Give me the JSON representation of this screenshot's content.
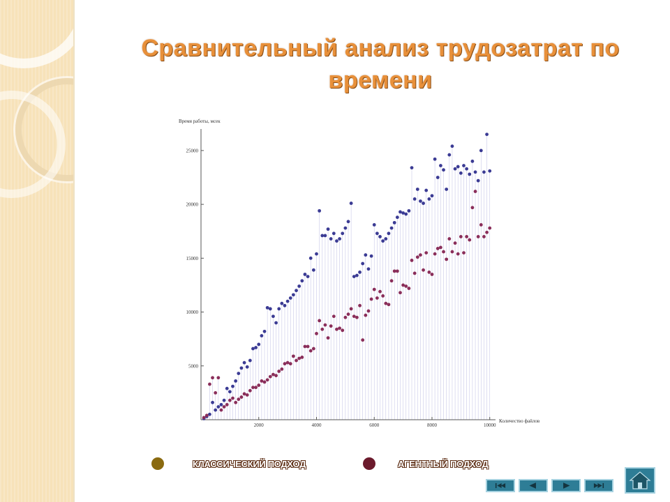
{
  "slide": {
    "title": "Сравнительный анализ трудозатрат по времени"
  },
  "legend": [
    {
      "label": "КЛАССИЧЕСКИЙ ПОДХОД",
      "color": "#8a6a10"
    },
    {
      "label": "АГЕНТНЫЙ ПОДХОД",
      "color": "#6b1a2c"
    }
  ],
  "navigation": {
    "buttons": [
      "first-icon",
      "prev-icon",
      "next-icon",
      "last-icon"
    ],
    "home": "home-icon"
  },
  "colors": {
    "series_classic": "#3b3b94",
    "series_agent": "#8a2e5a",
    "stem": "#c9c9e8",
    "title": "#e8903a",
    "nav": "#2e7d96"
  },
  "chart_data": {
    "type": "scatter",
    "ylabel": "Время работы, мсек",
    "xlabel": "Количество файлов",
    "xlim": [
      0,
      10200
    ],
    "ylim": [
      0,
      27000
    ],
    "xticks": [
      2000,
      4000,
      6000,
      8000,
      10000
    ],
    "yticks": [
      5000,
      10000,
      15000,
      20000,
      25000
    ],
    "x": [
      100,
      200,
      300,
      400,
      500,
      600,
      700,
      800,
      900,
      1000,
      1100,
      1200,
      1300,
      1400,
      1500,
      1600,
      1700,
      1800,
      1900,
      2000,
      2100,
      2200,
      2300,
      2400,
      2500,
      2600,
      2700,
      2800,
      2900,
      3000,
      3100,
      3200,
      3300,
      3400,
      3500,
      3600,
      3700,
      3800,
      3900,
      4000,
      4100,
      4200,
      4300,
      4400,
      4500,
      4600,
      4700,
      4800,
      4900,
      5000,
      5100,
      5200,
      5300,
      5400,
      5500,
      5600,
      5700,
      5800,
      5900,
      6000,
      6100,
      6200,
      6300,
      6400,
      6500,
      6600,
      6700,
      6800,
      6900,
      7000,
      7100,
      7200,
      7300,
      7400,
      7500,
      7600,
      7700,
      7800,
      7900,
      8000,
      8100,
      8200,
      8300,
      8400,
      8500,
      8600,
      8700,
      8800,
      8900,
      9000,
      9100,
      9200,
      9300,
      9400,
      9500,
      9600,
      9700,
      9800,
      9900,
      10000
    ],
    "series": [
      {
        "values": [
          100,
          300,
          500,
          1600,
          900,
          1200,
          1400,
          1800,
          2900,
          2600,
          3100,
          3600,
          4300,
          4800,
          5300,
          4900,
          5500,
          6600,
          6700,
          7000,
          7800,
          8200,
          10400,
          10300,
          9600,
          9000,
          10300,
          10800,
          10600,
          11000,
          11300,
          11600,
          12000,
          12400,
          12900,
          13500,
          13300,
          15000,
          13900,
          15400,
          19400,
          17100,
          17100,
          17700,
          16800,
          17300,
          16600,
          16800,
          17300,
          17800,
          18400,
          20100,
          13300,
          13400,
          13700,
          14500,
          15300,
          14000,
          15200,
          18100,
          17300,
          17000,
          16600,
          16800,
          17300,
          17800,
          18300,
          18800,
          19300,
          19200,
          19100,
          19400,
          23400,
          20500,
          21400,
          20300,
          20100,
          21300,
          20500,
          20800,
          24200,
          22500,
          23600,
          23200,
          21400,
          24600,
          25400,
          23300,
          23500,
          22900,
          23600,
          23300,
          22800,
          24000,
          23000,
          22200,
          25000,
          23000,
          26500,
          23100
        ],
        "color": "#3b3b94"
      },
      {
        "values": [
          200,
          400,
          3300,
          3900,
          2500,
          3900,
          900,
          1200,
          1400,
          1800,
          2000,
          1600,
          1900,
          2100,
          2400,
          2300,
          2700,
          3000,
          3000,
          3200,
          3600,
          3500,
          3700,
          4000,
          4200,
          4100,
          4500,
          4700,
          5200,
          5300,
          5200,
          5900,
          5500,
          5700,
          5800,
          6800,
          6800,
          6400,
          6600,
          8000,
          9200,
          8400,
          8800,
          7600,
          8700,
          9600,
          8400,
          8500,
          8300,
          9500,
          9800,
          10300,
          9600,
          9500,
          10600,
          7400,
          9700,
          10100,
          11200,
          12100,
          11300,
          11900,
          11500,
          10800,
          10700,
          12900,
          13800,
          13800,
          11800,
          12500,
          12400,
          12200,
          14800,
          13600,
          15100,
          15300,
          13900,
          15500,
          13700,
          13500,
          15400,
          15900,
          16000,
          15600,
          14900,
          16800,
          15600,
          16400,
          15400,
          17000,
          15500,
          17000,
          16700,
          19700,
          21200,
          17000,
          18100,
          17000,
          17400,
          17800
        ],
        "color": "#8a2e5a"
      }
    ]
  }
}
